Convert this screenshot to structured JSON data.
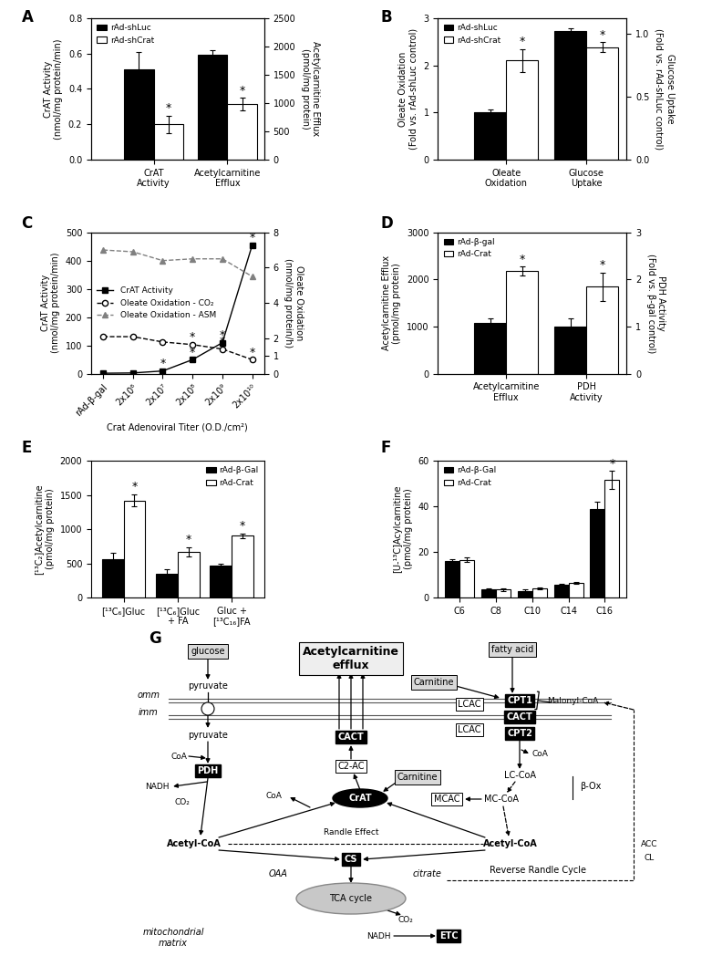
{
  "chart_data": [
    {
      "panel": "A",
      "type": "bar",
      "categories": [
        "CrAT\nActivity",
        "Acetylcarnitine\nEfflux"
      ],
      "ylabel": "CrAT Activity\n(nmol/mg protein/min)",
      "y2label": "Acetylcarnitine Efflux\n(pmol/mg protein)",
      "ylim": [
        0,
        0.8
      ],
      "yticks": [
        {
          "value": 0,
          "label": "0.0"
        },
        {
          "value": 0.2,
          "label": "0.2"
        },
        {
          "value": 0.4,
          "label": "0.4"
        },
        {
          "value": 0.6,
          "label": "0.6"
        },
        {
          "value": 0.8,
          "label": "0.8"
        }
      ],
      "y2lim": [
        0,
        2500
      ],
      "y2ticks": [
        0,
        500,
        1000,
        1500,
        2000,
        2500
      ],
      "legend": "upper left",
      "series": [
        {
          "name": "rAd-shLuc",
          "color": "#000000",
          "values": [
            0.51,
            null
          ],
          "errors": [
            0.1,
            null
          ],
          "significance": [
            null,
            null
          ]
        },
        {
          "name": "rAd-shCrat",
          "color": "#ffffff",
          "values": [
            0.2,
            null
          ],
          "errors": [
            0.05,
            null
          ],
          "significance": [
            "*",
            null
          ]
        },
        {
          "name": "rAd-shLuc",
          "color": "#000000",
          "axis": "y2",
          "values": [
            null,
            1850
          ],
          "errors": [
            null,
            80
          ],
          "significance": [
            null,
            null
          ]
        },
        {
          "name": "rAd-shCrat",
          "color": "#ffffff",
          "axis": "y2",
          "values": [
            null,
            980
          ],
          "errors": [
            null,
            110
          ],
          "significance": [
            null,
            "*"
          ]
        }
      ]
    },
    {
      "panel": "B",
      "type": "bar",
      "categories": [
        "Oleate\nOxidation",
        "Glucose\nUptake"
      ],
      "ylabel": "Oleate Oxidation\n(Fold vs. rAd-shLuc control)",
      "y2label": "Glucose Uptake\n(Fold vs. rAd-shLuc control)",
      "ylim": [
        0,
        3
      ],
      "yticks": [
        0,
        1,
        2,
        3
      ],
      "y2lim": [
        0,
        1.12
      ],
      "y2ticks": [
        {
          "value": 0,
          "label": "0.0"
        },
        0.5,
        {
          "value": 1,
          "label": "1.0"
        }
      ],
      "legend": "upper left",
      "series": [
        {
          "name": "rAd-shLuc",
          "color": "#000000",
          "values": [
            1.0,
            null
          ],
          "errors": [
            0.06,
            null
          ],
          "significance": [
            null,
            null
          ]
        },
        {
          "name": "rAd-shCrat",
          "color": "#ffffff",
          "values": [
            2.1,
            null
          ],
          "errors": [
            0.25,
            null
          ],
          "significance": [
            "*",
            null
          ]
        },
        {
          "name": "rAd-shLuc",
          "color": "#000000",
          "axis": "y2",
          "values": [
            null,
            1.02
          ],
          "errors": [
            null,
            0.02
          ],
          "significance": [
            null,
            null
          ]
        },
        {
          "name": "rAd-shCrat",
          "color": "#ffffff",
          "axis": "y2",
          "values": [
            null,
            0.89
          ],
          "errors": [
            null,
            0.04
          ],
          "significance": [
            null,
            "*"
          ]
        }
      ]
    },
    {
      "panel": "C",
      "type": "line",
      "categories": [
        "rAd-β-gal",
        "2x10⁶",
        "2x10⁷",
        "2x10⁸",
        "2x10⁹",
        "2x10¹⁰"
      ],
      "xlabel": "Crat Adenoviral Titer (O.D./cm²)",
      "ylabel": "CrAT Activity\n(nmol/mg protein/min)",
      "y2label": "Oleate Oxidation\n(nmol/mg protein/h)",
      "ylim": [
        0,
        500
      ],
      "yticks": [
        0,
        100,
        200,
        300,
        400,
        500
      ],
      "y2lim": [
        0,
        8
      ],
      "y2ticks": [
        0,
        1,
        2,
        4,
        6,
        8
      ],
      "legend": "center left",
      "series": [
        {
          "name": "CrAT Activity",
          "color": "#000000",
          "marker": "square",
          "line_style": "solid",
          "values": [
            2,
            3,
            10,
            50,
            110,
            455
          ],
          "significance": [
            null,
            null,
            "*",
            "*",
            "*",
            "*"
          ]
        },
        {
          "name": "Oleate Oxidation - CO₂",
          "color": "#000000",
          "marker": "open_circle",
          "line_style": "dashed",
          "axis": "y2",
          "values": [
            2.1,
            2.1,
            1.8,
            1.65,
            1.4,
            0.8
          ],
          "significance": [
            null,
            null,
            null,
            "*",
            "*",
            "*"
          ]
        },
        {
          "name": "Oleate Oxidation - ASM",
          "color": "#808080",
          "marker": "triangle",
          "line_style": "dashed",
          "axis": "y2",
          "values": [
            7.0,
            6.9,
            6.4,
            6.5,
            6.5,
            5.5
          ],
          "significance": [
            null,
            null,
            null,
            null,
            null,
            null
          ]
        }
      ]
    },
    {
      "panel": "D",
      "type": "bar",
      "categories": [
        "Acetylcarnitine\nEfflux",
        "PDH\nActivity"
      ],
      "ylabel": "Acetylcarnitine Efflux\n(pmol/mg protein)",
      "y2label": "PDH Activity\n(Fold vs. β-gal control)",
      "ylim": [
        0,
        3000
      ],
      "yticks": [
        0,
        1000,
        2000,
        3000
      ],
      "y2lim": [
        0,
        3
      ],
      "y2ticks": [
        0,
        1,
        2,
        3
      ],
      "legend": "upper left",
      "series": [
        {
          "name": "rAd-β-gal",
          "color": "#000000",
          "values": [
            1080,
            null
          ],
          "errors": [
            90,
            null
          ],
          "significance": [
            null,
            null
          ]
        },
        {
          "name": "rAd-Crat",
          "color": "#ffffff",
          "values": [
            2180,
            null
          ],
          "errors": [
            90,
            null
          ],
          "significance": [
            "*",
            null
          ]
        },
        {
          "name": "rAd-β-gal",
          "color": "#000000",
          "axis": "y2",
          "values": [
            null,
            1.0
          ],
          "errors": [
            null,
            0.17
          ],
          "significance": [
            null,
            null
          ]
        },
        {
          "name": "rAd-Crat",
          "color": "#ffffff",
          "axis": "y2",
          "values": [
            null,
            1.85
          ],
          "errors": [
            null,
            0.3
          ],
          "significance": [
            null,
            "*"
          ]
        }
      ]
    },
    {
      "panel": "E",
      "type": "bar",
      "categories": [
        "[¹³C₆]Gluc",
        "[¹³C₆]Gluc\n+ FA",
        "Gluc +\n[¹³C₁₆]FA"
      ],
      "ylabel": "[¹³C₂]Acetylcarnitine\n(pmol/mg protein)",
      "ylim": [
        0,
        2000
      ],
      "yticks": [
        0,
        500,
        1000,
        1500,
        2000
      ],
      "legend": "upper right",
      "series": [
        {
          "name": "rAd-β-Gal",
          "color": "#000000",
          "values": [
            560,
            350,
            470
          ],
          "errors": [
            90,
            60,
            20
          ],
          "significance": [
            null,
            null,
            null
          ]
        },
        {
          "name": "rAd-Crat",
          "color": "#ffffff",
          "values": [
            1420,
            670,
            905
          ],
          "errors": [
            90,
            70,
            35
          ],
          "significance": [
            "*",
            "*",
            "*"
          ]
        }
      ]
    },
    {
      "panel": "F",
      "type": "bar",
      "categories": [
        "C6",
        "C8",
        "C10",
        "C14",
        "C16"
      ],
      "ylabel": "[U-¹³C]Acylcarnitine\n(pmol/mg protein)",
      "ylim": [
        0,
        60
      ],
      "yticks": [
        0,
        20,
        40,
        60
      ],
      "legend": "upper left",
      "series": [
        {
          "name": "rAd-β-Gal",
          "color": "#000000",
          "values": [
            16,
            3.5,
            3,
            5.5,
            39
          ],
          "errors": [
            1,
            0.5,
            0.5,
            0.5,
            3
          ],
          "significance": [
            null,
            null,
            null,
            null,
            null
          ]
        },
        {
          "name": "rAd-Crat",
          "color": "#ffffff",
          "values": [
            16.5,
            3.5,
            4,
            6.5,
            51.5
          ],
          "errors": [
            1,
            0.5,
            0.5,
            0.5,
            4
          ],
          "significance": [
            null,
            null,
            null,
            null,
            "*"
          ]
        }
      ]
    }
  ],
  "diagram": {
    "panel": "G",
    "nodes": [
      "glucose",
      "pyruvate",
      "omm",
      "imm",
      "pyruvate",
      "PDH",
      "CoA",
      "NADH",
      "CO₂",
      "Acetyl-CoA",
      "Acetylcarnitine\nefflux",
      "CACT",
      "C2-AC",
      "CrAT",
      "Carnitine",
      "CoA",
      "fatty acid",
      "Carnitine",
      "LCAC",
      "CPT1",
      "Malonyl-CoA",
      "CACT",
      "CPT2",
      "LCAC",
      "CoA",
      "LC-CoA",
      "MCAC",
      "MC-CoA",
      "β-Ox",
      "Acetyl-CoA",
      "Randle Effect",
      "CS",
      "OAA",
      "citrate",
      "TCA cycle",
      "CO₂",
      "NADH",
      "ETC",
      "Reverse Randle Cycle",
      "ACC",
      "CL",
      "mitochondrial\nmatrix"
    ]
  }
}
